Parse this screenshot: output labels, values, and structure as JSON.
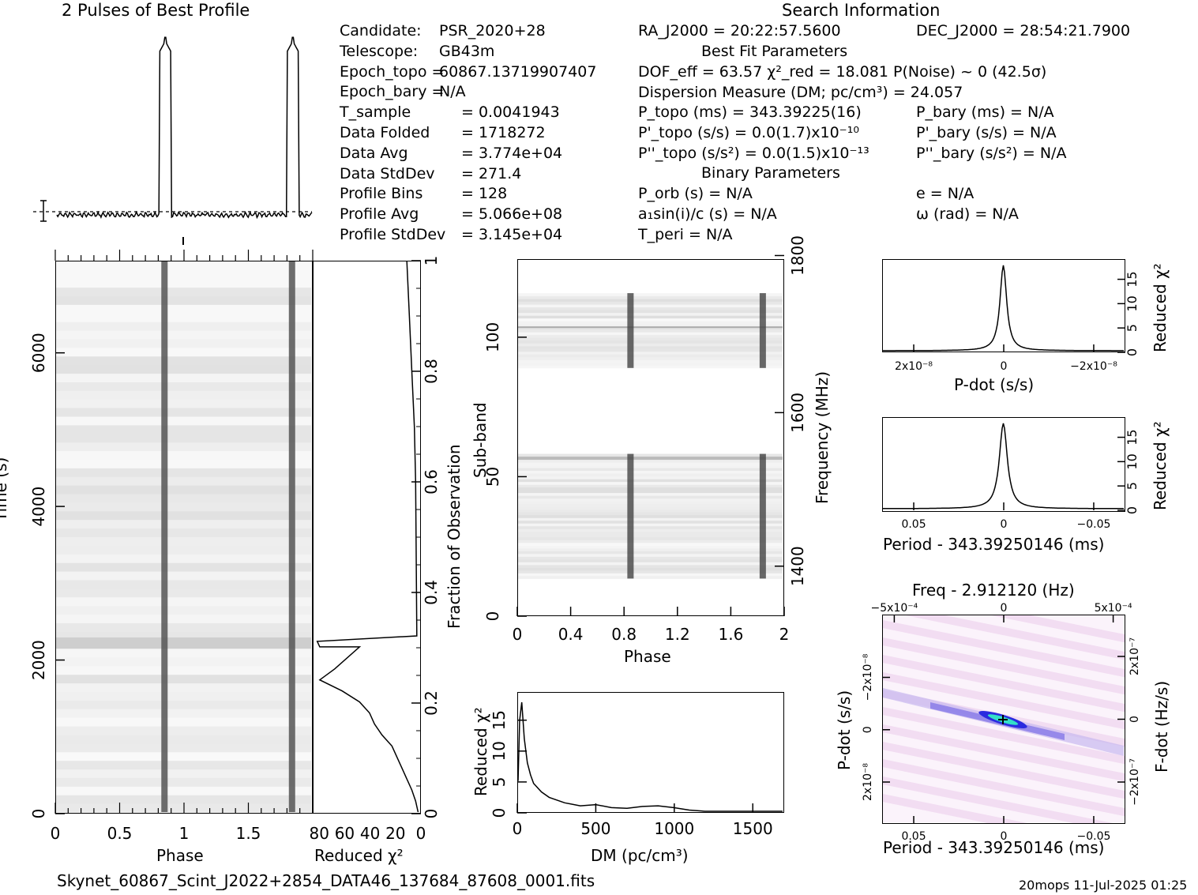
{
  "titles": {
    "profile_title": "2 Pulses of Best Profile",
    "search_info": "Search Information",
    "best_fit": "Best Fit Parameters",
    "binary": "Binary Parameters"
  },
  "info_left": [
    {
      "k": "Candidate:",
      "v": "PSR_2020+28"
    },
    {
      "k": "Telescope:",
      "v": "GB43m"
    },
    {
      "k": "Epoch_topo =",
      "v": "60867.13719907407"
    },
    {
      "k": "Epoch_bary =",
      "v": "N/A"
    },
    {
      "k": "T_sample",
      "v": "=   0.0041943"
    },
    {
      "k": "Data Folded",
      "v": "=   1718272"
    },
    {
      "k": "Data Avg",
      "v": "=   3.774e+04"
    },
    {
      "k": "Data StdDev",
      "v": "=   271.4"
    },
    {
      "k": "Profile Bins",
      "v": "=   128"
    },
    {
      "k": "Profile Avg",
      "v": "=   5.066e+08"
    },
    {
      "k": "Profile StdDev",
      "v": "=   3.145e+04"
    }
  ],
  "info_mid": [
    "RA_J2000 = 20:22:57.5600",
    "DOF_eff = 63.57  χ²_red = 18.081   P(Noise) ~ 0    (42.5σ)",
    "Dispersion Measure (DM; pc/cm³) = 24.057",
    "P_topo (ms) =  343.39225(16)",
    "P'_topo (s/s) = 0.0(1.7)x10⁻¹⁰",
    "P''_topo (s/s²) = 0.0(1.5)x10⁻¹³",
    "P_orb (s) = N/A",
    "a₁sin(i)/c (s) = N/A",
    "T_peri = N/A"
  ],
  "info_right": [
    "DEC_J2000 = 28:54:21.7900",
    "P_bary (ms) = N/A",
    "P'_bary (s/s) = N/A",
    "P''_bary (s/s²) = N/A",
    "e = N/A",
    "ω (rad) = N/A"
  ],
  "axes": {
    "time_ylabel": "Time (s)",
    "phase_xlabel": "Phase",
    "redchi_xlabel": "Reduced χ²",
    "frac_ylabel": "Fraction of Observation",
    "subband_ylabel": "Sub-band",
    "freq_ylabel": "Frequency (MHz)",
    "subband_xlabel": "Phase",
    "dm_xlabel": "DM (pc/cm³)",
    "dm_ylabel": "Reduced χ²",
    "pdot_xlabel": "P-dot (s/s)",
    "pdot_ylabel": "Reduced χ²",
    "period_xlabel": "Period - 343.39250146 (ms)",
    "period_ylabel": "Reduced χ²",
    "pp_title": "Freq - 2.912120 (Hz)",
    "pp_xlabel": "Period - 343.39250146 (ms)",
    "pp_ylabel": "P-dot (s/s)",
    "pp_rlabel": "F-dot (Hz/s)"
  },
  "ticks": {
    "time_y": [
      "0",
      "2000",
      "4000",
      "6000"
    ],
    "phase_x": [
      "0",
      "0.5",
      "1",
      "1.5"
    ],
    "redchi_x": [
      "80",
      "60",
      "40",
      "20",
      "0"
    ],
    "frac_y": [
      "0",
      "0.2",
      "0.4",
      "0.6",
      "0.8",
      "1"
    ],
    "subband_y": [
      "0",
      "50",
      "100"
    ],
    "freq_y": [
      "1400",
      "1600",
      "1800"
    ],
    "subband_x": [
      "0",
      "0.4",
      "0.8",
      "1.2",
      "1.6",
      "2"
    ],
    "dm_x": [
      "0",
      "500",
      "1000",
      "1500"
    ],
    "dm_y": [
      "0",
      "5",
      "10",
      "15"
    ],
    "pdot_x": [
      "2x10⁻⁸",
      "0",
      "−2x10⁻⁸"
    ],
    "chi_y": [
      "0",
      "5",
      "10",
      "15"
    ],
    "period_x": [
      "0.05",
      "0",
      "−0.05"
    ],
    "pp_top": [
      "−5x10⁻⁴",
      "0",
      "5x10⁻⁴"
    ],
    "pp_left": [
      "−2x10⁻⁸",
      "0",
      "2x10⁻⁸"
    ],
    "pp_right": [
      "2x10⁻⁷",
      "0",
      "−2x10⁻⁷"
    ],
    "pp_bottom": [
      "0.05",
      "0",
      "−0.05"
    ]
  },
  "footer": {
    "filename": "Skynet_60867_Scint_J2022+2854_DATA46_137684_87608_0001.fits",
    "stamp": "20mops  11-Jul-2025 01:25"
  },
  "chart_data": [
    {
      "type": "line",
      "name": "profile",
      "title": "2 Pulses of Best Profile",
      "x_range": [
        0,
        2
      ],
      "pulse_phases": [
        0.85,
        1.85
      ]
    },
    {
      "type": "heatmap",
      "name": "time-phase",
      "xlabel": "Phase",
      "ylabel": "Time (s)",
      "xlim": [
        0,
        2
      ],
      "ylim": [
        0,
        7200
      ],
      "pulse_phases": [
        0.85,
        1.85
      ],
      "rfi_band_time": 2200
    },
    {
      "type": "line",
      "name": "reduced-chi2-vs-time",
      "xlabel": "Reduced χ²",
      "ylabel": "Fraction of Observation",
      "x": [
        1,
        3,
        6,
        10,
        14,
        18,
        22,
        30,
        36,
        40,
        48,
        62,
        80,
        68,
        48,
        80,
        82,
        2,
        3,
        4,
        6,
        8,
        10
      ],
      "y": [
        0,
        0.02,
        0.04,
        0.06,
        0.08,
        0.1,
        0.12,
        0.14,
        0.16,
        0.18,
        0.2,
        0.22,
        0.24,
        0.26,
        0.3,
        0.3,
        0.31,
        0.32,
        0.6,
        0.7,
        0.8,
        0.9,
        1.0
      ]
    },
    {
      "type": "heatmap",
      "name": "subband-phase",
      "xlabel": "Phase",
      "ylabel": "Sub-band",
      "xlim": [
        0,
        2
      ],
      "ylim": [
        0,
        128
      ],
      "pulse_phases": [
        0.85,
        1.85
      ],
      "occupied_subbands": [
        [
          13,
          58
        ],
        [
          89,
          116
        ]
      ]
    },
    {
      "type": "line",
      "name": "dm-curve",
      "xlabel": "DM (pc/cm³)",
      "ylabel": "Reduced χ²",
      "xlim": [
        0,
        1700
      ],
      "ylim": [
        0,
        18
      ],
      "x": [
        0,
        10,
        24,
        40,
        60,
        80,
        100,
        150,
        200,
        300,
        400,
        500,
        600,
        700,
        800,
        900,
        1000,
        1100,
        1200,
        1400,
        1700
      ],
      "y": [
        5,
        15,
        18,
        12,
        8,
        6,
        4.6,
        3.2,
        2.3,
        1.4,
        0.9,
        1.1,
        0.6,
        0.5,
        0.8,
        0.9,
        0.6,
        0.2,
        0,
        0,
        0
      ]
    },
    {
      "type": "line",
      "name": "pdot-curve",
      "xlabel": "P-dot (s/s)",
      "ylabel": "Reduced χ²",
      "ylim": [
        0,
        18
      ],
      "peak_x": 0,
      "peak_y": 18
    },
    {
      "type": "line",
      "name": "period-curve",
      "xlabel": "Period - 343.39250146 (ms)",
      "ylabel": "Reduced χ²",
      "ylim": [
        0,
        18
      ],
      "peak_x": 0,
      "peak_y": 18
    },
    {
      "type": "heatmap",
      "name": "period-pdot",
      "title": "Freq - 2.912120 (Hz)",
      "xlabel": "Period - 343.39250146 (ms)",
      "ylabel": "P-dot (s/s)",
      "best": [
        0,
        0
      ]
    }
  ]
}
